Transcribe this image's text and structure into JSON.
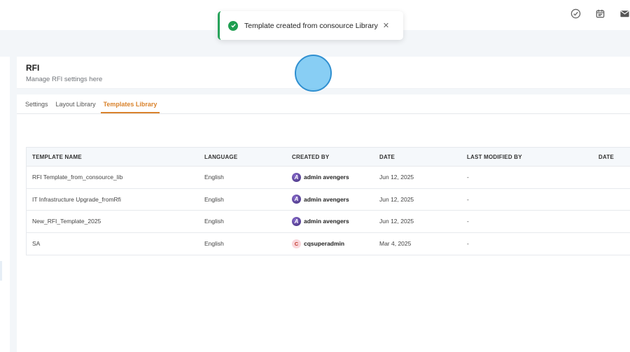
{
  "toast": {
    "message": "Template created from consource Library",
    "status": "success",
    "accent_color": "#27a35a"
  },
  "topbar": {
    "icons": [
      "check-circle-icon",
      "calendar-icon",
      "mail-icon"
    ]
  },
  "page": {
    "title": "RFI",
    "subtitle": "Manage RFI settings here"
  },
  "tabs": [
    {
      "label": "Settings",
      "active": false
    },
    {
      "label": "Layout Library",
      "active": false
    },
    {
      "label": "Templates Library",
      "active": true
    }
  ],
  "accent_color": "#d9822b",
  "table": {
    "headers": {
      "template_name": "TEMPLATE NAME",
      "language": "LANGUAGE",
      "created_by": "CREATED BY",
      "date": "DATE",
      "last_modified_by": "LAST MODIFIED BY",
      "modified_date": "DATE"
    },
    "rows": [
      {
        "template_name": "RFI Template_from_consource_lib",
        "language": "English",
        "avatar": "A",
        "created_by": "admin avengers",
        "date": "Jun 12, 2025",
        "last_modified_by": "-"
      },
      {
        "template_name": "IT Infrastructure Upgrade_fromRfi",
        "language": "English",
        "avatar": "A",
        "created_by": "admin avengers",
        "date": "Jun 12, 2025",
        "last_modified_by": "-"
      },
      {
        "template_name": "New_RFI_Template_2025",
        "language": "English",
        "avatar": "A",
        "created_by": "admin avengers",
        "date": "Jun 12, 2025",
        "last_modified_by": "-"
      },
      {
        "template_name": "SA",
        "language": "English",
        "avatar": "C",
        "created_by": "cqsuperadmin",
        "date": "Mar 4, 2025",
        "last_modified_by": "-"
      }
    ]
  }
}
